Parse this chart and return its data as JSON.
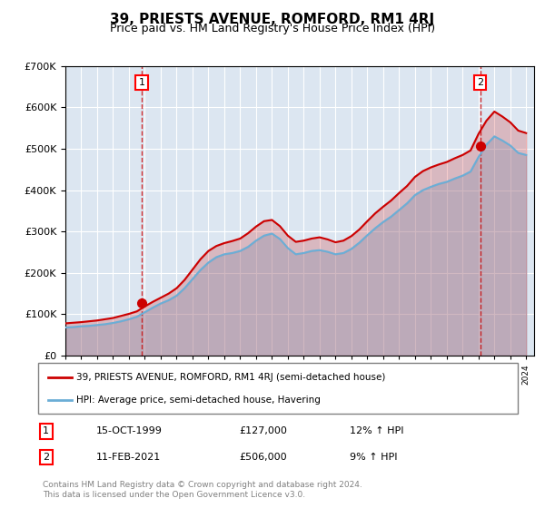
{
  "title": "39, PRIESTS AVENUE, ROMFORD, RM1 4RJ",
  "subtitle": "Price paid vs. HM Land Registry's House Price Index (HPI)",
  "background_color": "#dce6f1",
  "plot_bg_color": "#dce6f1",
  "ylabel": "",
  "ylim": [
    0,
    700000
  ],
  "yticks": [
    0,
    100000,
    200000,
    300000,
    400000,
    500000,
    600000,
    700000
  ],
  "ytick_labels": [
    "£0",
    "£100K",
    "£200K",
    "£300K",
    "£400K",
    "£500K",
    "£600K",
    "£700K"
  ],
  "x_start_year": 1995,
  "x_end_year": 2024,
  "legend_line1": "39, PRIESTS AVENUE, ROMFORD, RM1 4RJ (semi-detached house)",
  "legend_line2": "HPI: Average price, semi-detached house, Havering",
  "sale1_label": "1",
  "sale1_date": "15-OCT-1999",
  "sale1_price": "£127,000",
  "sale1_hpi": "12% ↑ HPI",
  "sale1_year": 1999.8,
  "sale1_value": 127000,
  "sale2_label": "2",
  "sale2_date": "11-FEB-2021",
  "sale2_price": "£506,000",
  "sale2_hpi": "9% ↑ HPI",
  "sale2_year": 2021.1,
  "sale2_value": 506000,
  "footer": "Contains HM Land Registry data © Crown copyright and database right 2024.\nThis data is licensed under the Open Government Licence v3.0.",
  "hpi_color": "#6baed6",
  "price_color": "#cc0000",
  "marker_color": "#cc0000",
  "dashed_line_color": "#cc0000",
  "hpi_years": [
    1995,
    1995.5,
    1996,
    1996.5,
    1997,
    1997.5,
    1998,
    1998.5,
    1999,
    1999.5,
    2000,
    2000.5,
    2001,
    2001.5,
    2002,
    2002.5,
    2003,
    2003.5,
    2004,
    2004.5,
    2005,
    2005.5,
    2006,
    2006.5,
    2007,
    2007.5,
    2008,
    2008.5,
    2009,
    2009.5,
    2010,
    2010.5,
    2011,
    2011.5,
    2012,
    2012.5,
    2013,
    2013.5,
    2014,
    2014.5,
    2015,
    2015.5,
    2016,
    2016.5,
    2017,
    2017.5,
    2018,
    2018.5,
    2019,
    2019.5,
    2020,
    2020.5,
    2021,
    2021.5,
    2022,
    2022.5,
    2023,
    2023.5,
    2024
  ],
  "hpi_values": [
    68000,
    69000,
    71000,
    72000,
    74000,
    76000,
    79000,
    83000,
    88000,
    94000,
    105000,
    116000,
    126000,
    134000,
    145000,
    163000,
    185000,
    207000,
    225000,
    238000,
    245000,
    248000,
    253000,
    263000,
    278000,
    290000,
    295000,
    282000,
    260000,
    245000,
    248000,
    253000,
    255000,
    251000,
    245000,
    248000,
    258000,
    273000,
    291000,
    308000,
    323000,
    336000,
    352000,
    368000,
    388000,
    400000,
    408000,
    415000,
    420000,
    428000,
    435000,
    445000,
    480000,
    510000,
    530000,
    520000,
    508000,
    490000,
    485000
  ],
  "price_years": [
    1995,
    1995.5,
    1996,
    1996.5,
    1997,
    1997.5,
    1998,
    1998.5,
    1999,
    1999.5,
    2000,
    2000.5,
    2001,
    2001.5,
    2002,
    2002.5,
    2003,
    2003.5,
    2004,
    2004.5,
    2005,
    2005.5,
    2006,
    2006.5,
    2007,
    2007.5,
    2008,
    2008.5,
    2009,
    2009.5,
    2010,
    2010.5,
    2011,
    2011.5,
    2012,
    2012.5,
    2013,
    2013.5,
    2014,
    2014.5,
    2015,
    2015.5,
    2016,
    2016.5,
    2017,
    2017.5,
    2018,
    2018.5,
    2019,
    2019.5,
    2020,
    2020.5,
    2021,
    2021.5,
    2022,
    2022.5,
    2023,
    2023.5,
    2024
  ],
  "price_values": [
    78000,
    79500,
    81000,
    83000,
    85000,
    88000,
    91000,
    96000,
    101000,
    107000,
    119000,
    130000,
    140000,
    150000,
    163000,
    183000,
    208000,
    233000,
    253000,
    265000,
    272000,
    277000,
    283000,
    296000,
    312000,
    325000,
    328000,
    313000,
    290000,
    275000,
    278000,
    283000,
    286000,
    281000,
    274000,
    278000,
    289000,
    305000,
    325000,
    344000,
    360000,
    375000,
    393000,
    410000,
    432000,
    446000,
    455000,
    462000,
    468000,
    477000,
    485000,
    496000,
    536000,
    568000,
    590000,
    578000,
    564000,
    544000,
    538000
  ]
}
